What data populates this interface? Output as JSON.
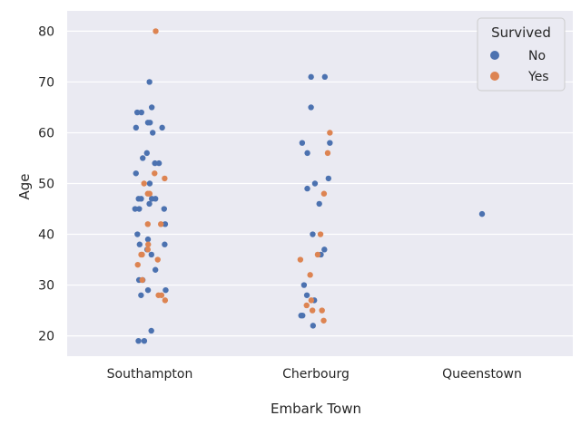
{
  "chart_data": {
    "type": "scatter",
    "title": "",
    "xlabel": "Embark Town",
    "ylabel": "Age",
    "categories": [
      "Southampton",
      "Cherbourg",
      "Queenstown"
    ],
    "ylim": [
      16,
      84
    ],
    "yticks": [
      20,
      30,
      40,
      50,
      60,
      70,
      80
    ],
    "grid": true,
    "legend": {
      "title": "Survived",
      "placement": "top-right"
    },
    "series": [
      {
        "name": "No",
        "color": "#4c72b0",
        "points": [
          {
            "category": "Southampton",
            "y": 70
          },
          {
            "category": "Southampton",
            "y": 65
          },
          {
            "category": "Southampton",
            "y": 64
          },
          {
            "category": "Southampton",
            "y": 64
          },
          {
            "category": "Southampton",
            "y": 62
          },
          {
            "category": "Southampton",
            "y": 62
          },
          {
            "category": "Southampton",
            "y": 61
          },
          {
            "category": "Southampton",
            "y": 61
          },
          {
            "category": "Southampton",
            "y": 60
          },
          {
            "category": "Southampton",
            "y": 56
          },
          {
            "category": "Southampton",
            "y": 55
          },
          {
            "category": "Southampton",
            "y": 54
          },
          {
            "category": "Southampton",
            "y": 54
          },
          {
            "category": "Southampton",
            "y": 52
          },
          {
            "category": "Southampton",
            "y": 50
          },
          {
            "category": "Southampton",
            "y": 47
          },
          {
            "category": "Southampton",
            "y": 47
          },
          {
            "category": "Southampton",
            "y": 47
          },
          {
            "category": "Southampton",
            "y": 47
          },
          {
            "category": "Southampton",
            "y": 46
          },
          {
            "category": "Southampton",
            "y": 45
          },
          {
            "category": "Southampton",
            "y": 45
          },
          {
            "category": "Southampton",
            "y": 45
          },
          {
            "category": "Southampton",
            "y": 42
          },
          {
            "category": "Southampton",
            "y": 40
          },
          {
            "category": "Southampton",
            "y": 39
          },
          {
            "category": "Southampton",
            "y": 38
          },
          {
            "category": "Southampton",
            "y": 38
          },
          {
            "category": "Southampton",
            "y": 37
          },
          {
            "category": "Southampton",
            "y": 36
          },
          {
            "category": "Southampton",
            "y": 33
          },
          {
            "category": "Southampton",
            "y": 31
          },
          {
            "category": "Southampton",
            "y": 31
          },
          {
            "category": "Southampton",
            "y": 29
          },
          {
            "category": "Southampton",
            "y": 29
          },
          {
            "category": "Southampton",
            "y": 28
          },
          {
            "category": "Southampton",
            "y": 21
          },
          {
            "category": "Southampton",
            "y": 19
          },
          {
            "category": "Southampton",
            "y": 19
          },
          {
            "category": "Cherbourg",
            "y": 71
          },
          {
            "category": "Cherbourg",
            "y": 71
          },
          {
            "category": "Cherbourg",
            "y": 65
          },
          {
            "category": "Cherbourg",
            "y": 58
          },
          {
            "category": "Cherbourg",
            "y": 58
          },
          {
            "category": "Cherbourg",
            "y": 56
          },
          {
            "category": "Cherbourg",
            "y": 51
          },
          {
            "category": "Cherbourg",
            "y": 50
          },
          {
            "category": "Cherbourg",
            "y": 49
          },
          {
            "category": "Cherbourg",
            "y": 46
          },
          {
            "category": "Cherbourg",
            "y": 40
          },
          {
            "category": "Cherbourg",
            "y": 37
          },
          {
            "category": "Cherbourg",
            "y": 36
          },
          {
            "category": "Cherbourg",
            "y": 30
          },
          {
            "category": "Cherbourg",
            "y": 28
          },
          {
            "category": "Cherbourg",
            "y": 27
          },
          {
            "category": "Cherbourg",
            "y": 24
          },
          {
            "category": "Cherbourg",
            "y": 24
          },
          {
            "category": "Cherbourg",
            "y": 22
          },
          {
            "category": "Queenstown",
            "y": 44
          }
        ]
      },
      {
        "name": "Yes",
        "color": "#dd8452",
        "points": [
          {
            "category": "Southampton",
            "y": 80
          },
          {
            "category": "Southampton",
            "y": 52
          },
          {
            "category": "Southampton",
            "y": 51
          },
          {
            "category": "Southampton",
            "y": 50
          },
          {
            "category": "Southampton",
            "y": 48
          },
          {
            "category": "Southampton",
            "y": 48
          },
          {
            "category": "Southampton",
            "y": 42
          },
          {
            "category": "Southampton",
            "y": 42
          },
          {
            "category": "Southampton",
            "y": 38
          },
          {
            "category": "Southampton",
            "y": 37
          },
          {
            "category": "Southampton",
            "y": 36
          },
          {
            "category": "Southampton",
            "y": 36
          },
          {
            "category": "Southampton",
            "y": 35
          },
          {
            "category": "Southampton",
            "y": 34
          },
          {
            "category": "Southampton",
            "y": 31
          },
          {
            "category": "Southampton",
            "y": 28
          },
          {
            "category": "Southampton",
            "y": 28
          },
          {
            "category": "Southampton",
            "y": 27
          },
          {
            "category": "Cherbourg",
            "y": 60
          },
          {
            "category": "Cherbourg",
            "y": 56
          },
          {
            "category": "Cherbourg",
            "y": 48
          },
          {
            "category": "Cherbourg",
            "y": 40
          },
          {
            "category": "Cherbourg",
            "y": 36
          },
          {
            "category": "Cherbourg",
            "y": 35
          },
          {
            "category": "Cherbourg",
            "y": 32
          },
          {
            "category": "Cherbourg",
            "y": 27
          },
          {
            "category": "Cherbourg",
            "y": 26
          },
          {
            "category": "Cherbourg",
            "y": 25
          },
          {
            "category": "Cherbourg",
            "y": 25
          },
          {
            "category": "Cherbourg",
            "y": 23
          }
        ]
      }
    ]
  }
}
